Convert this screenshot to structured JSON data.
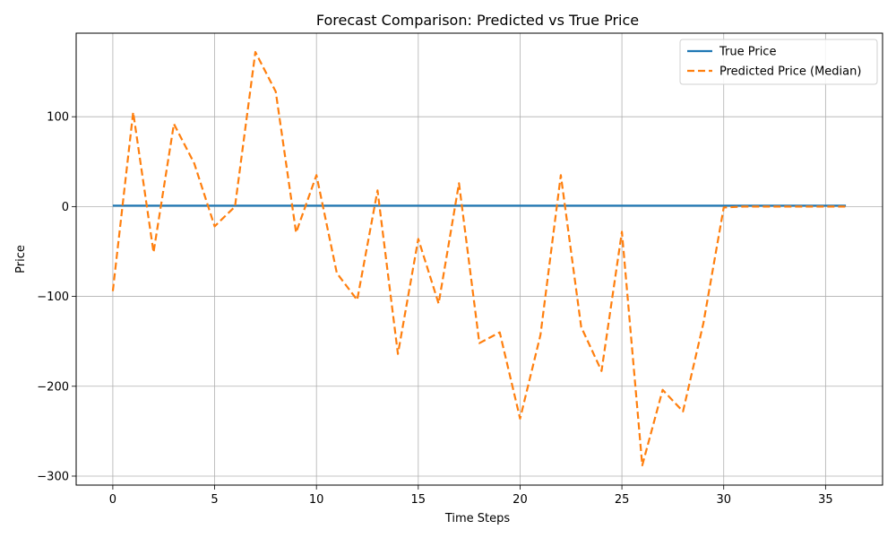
{
  "chart_data": {
    "type": "line",
    "title": "Forecast Comparison: Predicted vs True Price",
    "xlabel": "Time Steps",
    "ylabel": "Price",
    "xlim": [
      -1.8,
      37.8
    ],
    "ylim": [
      -310,
      193
    ],
    "xticks": [
      0,
      5,
      10,
      15,
      20,
      25,
      30,
      35
    ],
    "yticks": [
      -300,
      -200,
      -100,
      0,
      100
    ],
    "ytick_labels": [
      "−300",
      "−200",
      "−100",
      "0",
      "100"
    ],
    "grid": true,
    "legend_position": "top-right",
    "x": [
      0,
      1,
      2,
      3,
      4,
      5,
      6,
      7,
      8,
      9,
      10,
      11,
      12,
      13,
      14,
      15,
      16,
      17,
      18,
      19,
      20,
      21,
      22,
      23,
      24,
      25,
      26,
      27,
      28,
      29,
      30,
      31,
      32,
      33,
      34,
      35,
      36
    ],
    "series": [
      {
        "name": "True Price",
        "color": "#1f77b4",
        "style": "solid",
        "values": [
          1,
          1,
          1,
          1,
          1,
          1,
          1,
          1,
          1,
          1,
          1,
          1,
          1,
          1,
          1,
          1,
          1,
          1,
          1,
          1,
          1,
          1,
          1,
          1,
          1,
          1,
          1,
          1,
          1,
          1,
          1,
          1,
          1,
          1,
          1,
          1,
          1
        ]
      },
      {
        "name": "Predicted Price (Median)",
        "color": "#ff7f0e",
        "style": "dashed",
        "values": [
          -94,
          105,
          -51,
          92,
          48,
          -22,
          0,
          172,
          128,
          -29,
          35,
          -74,
          -104,
          18,
          -164,
          -36,
          -108,
          26,
          -152,
          -140,
          -236,
          -143,
          35,
          -134,
          -183,
          -28,
          -288,
          -204,
          -228,
          -130,
          -1,
          0,
          0,
          0,
          0,
          0,
          0
        ]
      }
    ]
  }
}
